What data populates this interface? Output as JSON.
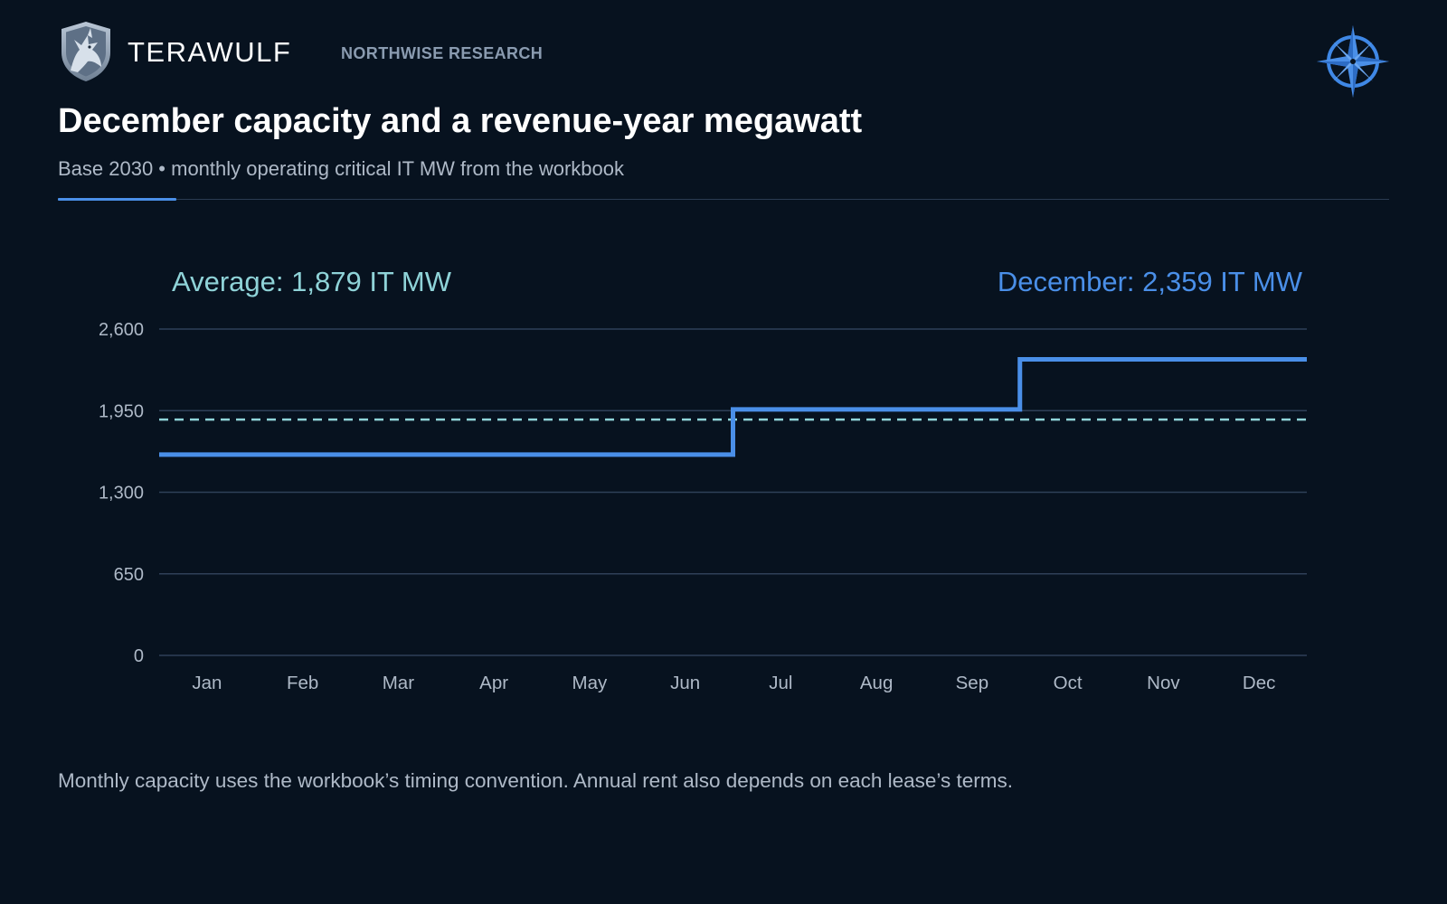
{
  "header": {
    "brand_name": "TERAWULF",
    "publisher": "NORTHWISE RESEARCH",
    "logo_icon": "wolf-shield-icon",
    "corner_icon": "compass-rose-icon"
  },
  "title": "December capacity and a revenue-year megawatt",
  "subtitle": "Base 2030 • monthly operating critical IT MW from the workbook",
  "footnote": "Monthly capacity uses the workbook’s timing convention. Annual rent also depends on each lease’s terms.",
  "colors": {
    "background": "#07121f",
    "accent": "#4a8fe8",
    "average": "#8fd3d8",
    "gridline": "#2f4058",
    "axis_text": "#aeb9c7"
  },
  "chart_data": {
    "type": "line",
    "step": true,
    "categories": [
      "Jan",
      "Feb",
      "Mar",
      "Apr",
      "May",
      "Jun",
      "Jul",
      "Aug",
      "Sep",
      "Oct",
      "Nov",
      "Dec"
    ],
    "series": [
      {
        "values": [
          1600,
          1600,
          1600,
          1600,
          1600,
          1600,
          1960,
          1960,
          1960,
          2359,
          2359,
          2359
        ],
        "color": "#4a8fe8"
      }
    ],
    "reference_line": {
      "value": 1879,
      "style": "dashed",
      "color": "#8fd3d8"
    },
    "annotations": {
      "average_label": "Average: 1,879 IT MW",
      "december_label": "December: 2,359 IT MW"
    },
    "yticks": [
      0,
      650,
      1300,
      1950,
      2600
    ],
    "ytick_labels": [
      "0",
      "650",
      "1,300",
      "1,950",
      "2,600"
    ],
    "ylim": [
      0,
      2600
    ],
    "grid": true,
    "xlabel": "",
    "ylabel": ""
  }
}
